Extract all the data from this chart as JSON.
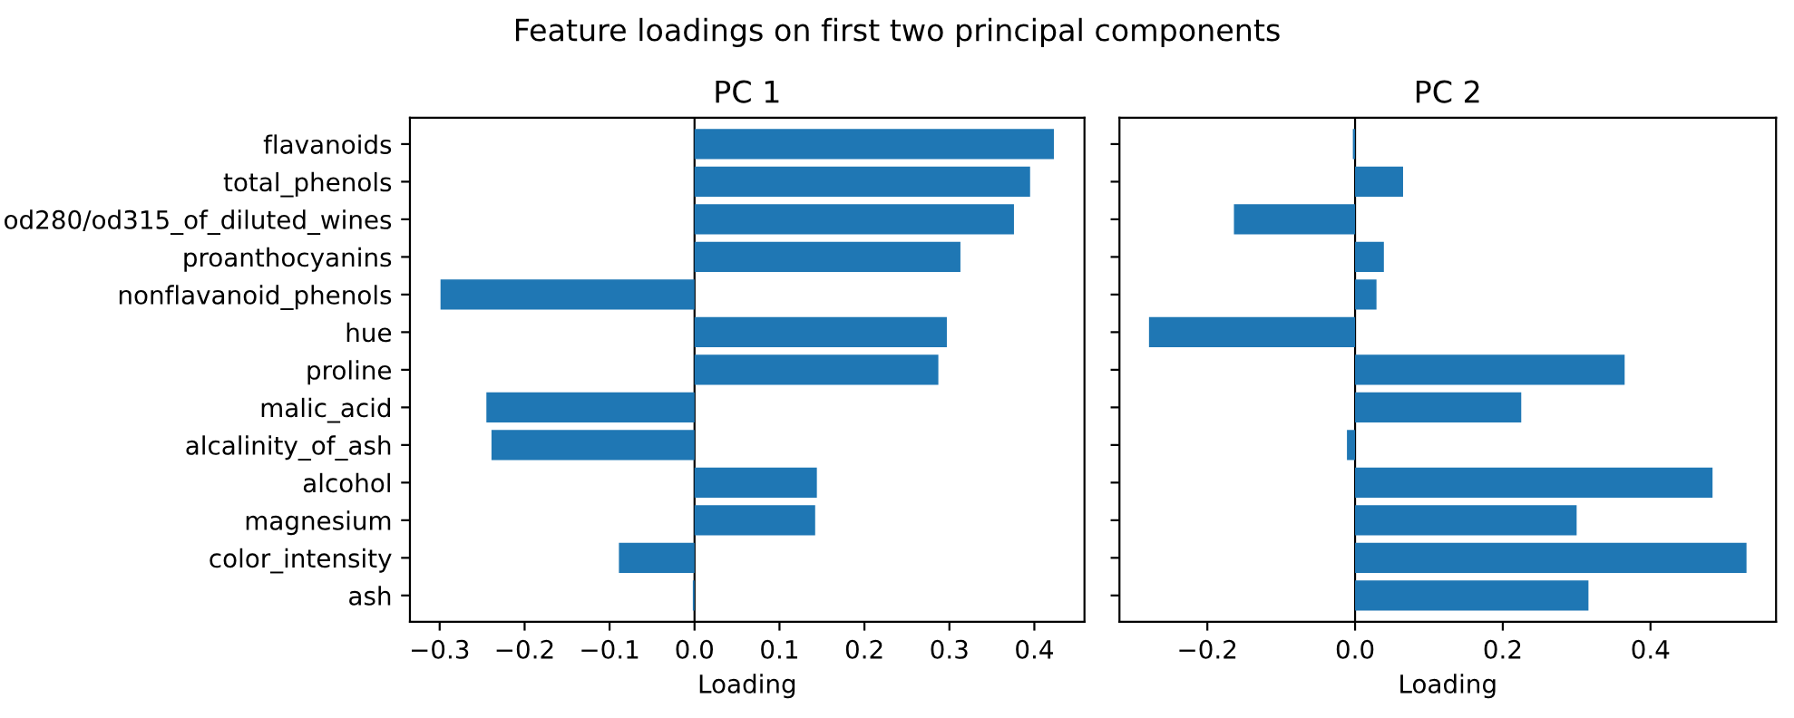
{
  "chart_data": [
    {
      "type": "bar",
      "orientation": "horizontal",
      "title": "PC 1",
      "xlabel": "Loading",
      "annotations": [
        "Feature loadings on first two principal components"
      ],
      "categories": [
        "flavanoids",
        "total_phenols",
        "od280/od315_of_diluted_wines",
        "proanthocyanins",
        "nonflavanoid_phenols",
        "hue",
        "proline",
        "malic_acid",
        "alcalinity_of_ash",
        "alcohol",
        "magnesium",
        "color_intensity",
        "ash"
      ],
      "values": [
        0.423,
        0.395,
        0.376,
        0.313,
        -0.299,
        0.297,
        0.287,
        -0.245,
        -0.239,
        0.144,
        0.142,
        -0.089,
        -0.002
      ],
      "color": "#1f77b4",
      "xlim": [
        -0.335,
        0.459
      ],
      "xticks": [
        {
          "value": -0.3,
          "label": "−0.3"
        },
        {
          "value": -0.2,
          "label": "−0.2"
        },
        {
          "value": -0.1,
          "label": "−0.1"
        },
        {
          "value": 0.0,
          "label": "0.0"
        },
        0.1,
        0.2,
        0.3,
        0.4
      ],
      "ref_lines": [
        {
          "axis": "x",
          "value": 0,
          "color": "#000000"
        }
      ]
    },
    {
      "type": "bar",
      "orientation": "horizontal",
      "title": "PC 2",
      "xlabel": "Loading",
      "tick_labels": "x",
      "categories": [
        null,
        null,
        null,
        null,
        null,
        null,
        null,
        null,
        null,
        null,
        null,
        null,
        null
      ],
      "values": [
        -0.003,
        0.065,
        -0.164,
        0.039,
        0.029,
        -0.279,
        0.365,
        0.225,
        -0.011,
        0.484,
        0.3,
        0.53,
        0.316
      ],
      "color": "#1f77b4",
      "xlim": [
        -0.319,
        0.57
      ],
      "xticks": [
        {
          "value": -0.2,
          "label": "−0.2"
        },
        {
          "value": 0.0,
          "label": "0.0"
        },
        0.2,
        0.4
      ],
      "ref_lines": [
        {
          "axis": "x",
          "value": 0,
          "color": "#000000"
        }
      ]
    }
  ]
}
